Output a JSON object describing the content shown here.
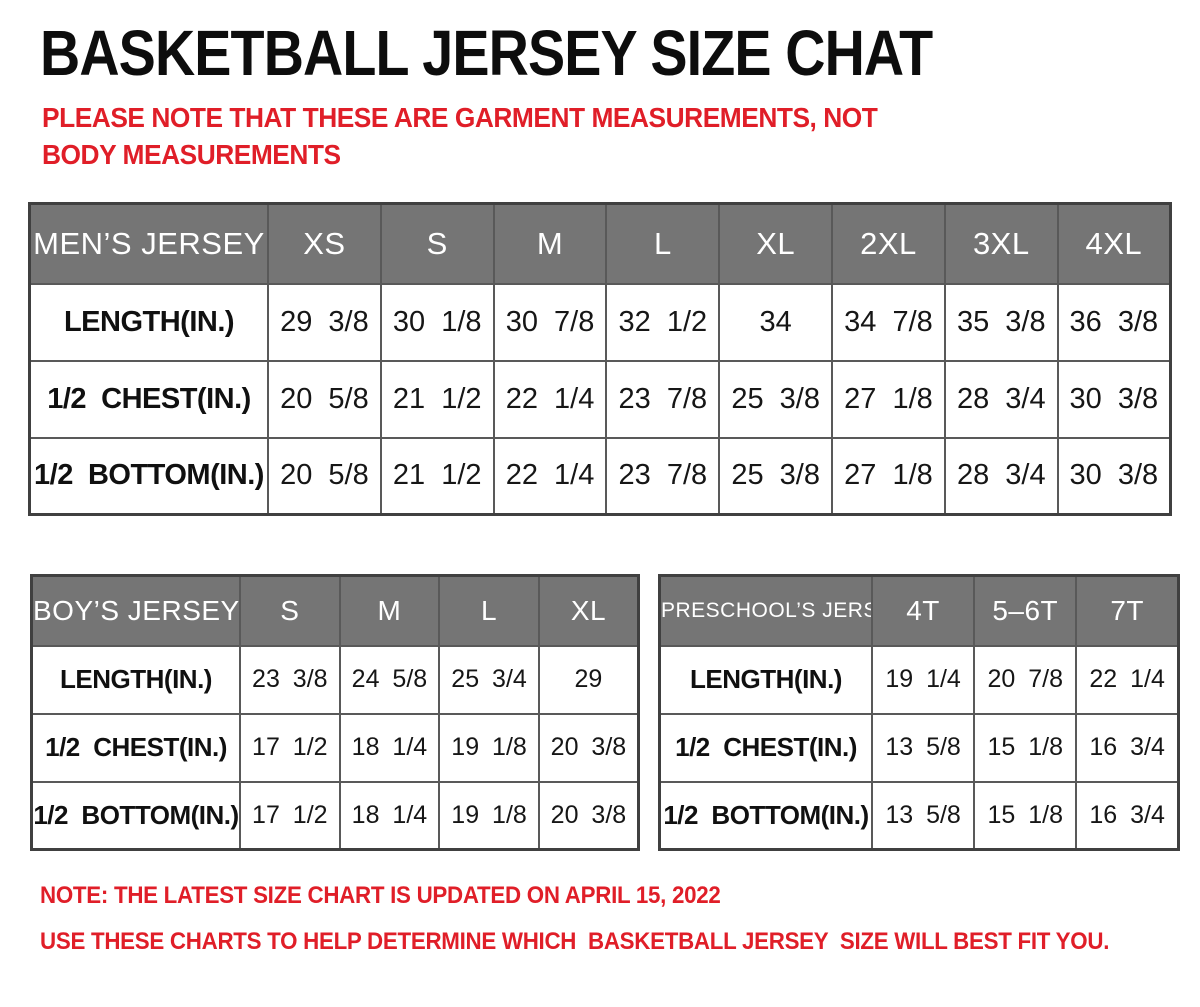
{
  "page": {
    "title": "BASKETBALL JERSEY SIZE CHAT",
    "subtitle": "PLEASE NOTE THAT THESE ARE GARMENT MEASUREMENTS, NOT BODY MEASUREMENTS",
    "notes": [
      "NOTE: THE LATEST SIZE CHART IS UPDATED ON APRIL 15, 2022",
      "USE THESE CHARTS TO HELP DETERMINE WHICH  BASKETBALL JERSEY  SIZE WILL BEST FIT YOU."
    ],
    "colors": {
      "accent_red": "#e01e28",
      "header_gray": "#757575",
      "header_text": "#ffffff",
      "border_dark": "#404040",
      "border_inner": "#595959",
      "text_black": "#101010"
    }
  },
  "chart_data": [
    {
      "type": "table",
      "title": "MEN’S JERSEY",
      "columns": [
        "XS",
        "S",
        "M",
        "L",
        "XL",
        "2XL",
        "3XL",
        "4XL"
      ],
      "rows": [
        {
          "label": "LENGTH(IN.)",
          "values": [
            "29 3/8",
            "30 1/8",
            "30 7/8",
            "32 1/2",
            "34",
            "34 7/8",
            "35 3/8",
            "36 3/8"
          ]
        },
        {
          "label": "1/2  CHEST(IN.)",
          "values": [
            "20 5/8",
            "21 1/2",
            "22 1/4",
            "23 7/8",
            "25 3/8",
            "27 1/8",
            "28 3/4",
            "30 3/8"
          ]
        },
        {
          "label": "1/2  BOTTOM(IN.)",
          "values": [
            "20 5/8",
            "21 1/2",
            "22 1/4",
            "23 7/8",
            "25 3/8",
            "27 1/8",
            "28 3/4",
            "30 3/8"
          ]
        }
      ]
    },
    {
      "type": "table",
      "title": "BOY’S JERSEY",
      "columns": [
        "S",
        "M",
        "L",
        "XL"
      ],
      "rows": [
        {
          "label": "LENGTH(IN.)",
          "values": [
            "23 3/8",
            "24 5/8",
            "25 3/4",
            "29"
          ]
        },
        {
          "label": "1/2  CHEST(IN.)",
          "values": [
            "17 1/2",
            "18 1/4",
            "19 1/8",
            "20 3/8"
          ]
        },
        {
          "label": "1/2  BOTTOM(IN.)",
          "values": [
            "17 1/2",
            "18 1/4",
            "19 1/8",
            "20 3/8"
          ]
        }
      ]
    },
    {
      "type": "table",
      "title": "PRESCHOOL’S JERSEY",
      "columns": [
        "4T",
        "5–6T",
        "7T"
      ],
      "rows": [
        {
          "label": "LENGTH(IN.)",
          "values": [
            "19 1/4",
            "20 7/8",
            "22 1/4"
          ]
        },
        {
          "label": "1/2  CHEST(IN.)",
          "values": [
            "13 5/8",
            "15 1/8",
            "16 3/4"
          ]
        },
        {
          "label": "1/2  BOTTOM(IN.)",
          "values": [
            "13 5/8",
            "15 1/8",
            "16 3/4"
          ]
        }
      ]
    }
  ]
}
